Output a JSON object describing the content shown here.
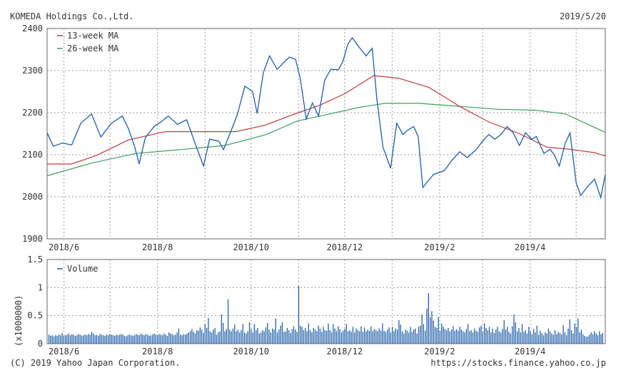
{
  "header": {
    "company": "KOMEDA Holdings Co.,Ltd.",
    "date": "2019/5/20"
  },
  "footer": {
    "copyright": "(C) 2019 Yahoo Japan Corporation.",
    "url": "https://stocks.finance.yahoo.co.jp"
  },
  "colors": {
    "price": "#1f5fa8",
    "ma13": "#c0393b",
    "ma26": "#3aa05a",
    "volume": "#1f5fa8",
    "grid": "#9a9a9a"
  },
  "chart_data": [
    {
      "type": "line",
      "title": "",
      "grid": true,
      "legend_placement": "top-left",
      "x_tick_labels": [
        "2018/6",
        "2018/8",
        "2018/10",
        "2018/12",
        "2019/2",
        "2019/4"
      ],
      "x_range": [
        "2018-05-21",
        "2019-05-20"
      ],
      "y_ticks": [
        "1900",
        "2000",
        "2100",
        "2200",
        "2300",
        "2400"
      ],
      "ylim": [
        1900,
        2400
      ],
      "series": [
        {
          "name": "",
          "role": "price",
          "points": [
            [
              "2018-05-21",
              2152
            ],
            [
              "2018-05-25",
              2120
            ],
            [
              "2018-05-31",
              2128
            ],
            [
              "2018-06-06",
              2123
            ],
            [
              "2018-06-12",
              2175
            ],
            [
              "2018-06-19",
              2197
            ],
            [
              "2018-06-25",
              2142
            ],
            [
              "2018-07-02",
              2175
            ],
            [
              "2018-07-09",
              2192
            ],
            [
              "2018-07-13",
              2162
            ],
            [
              "2018-07-17",
              2120
            ],
            [
              "2018-07-20",
              2078
            ],
            [
              "2018-07-24",
              2140
            ],
            [
              "2018-07-30",
              2168
            ],
            [
              "2018-08-03",
              2177
            ],
            [
              "2018-08-08",
              2192
            ],
            [
              "2018-08-14",
              2172
            ],
            [
              "2018-08-20",
              2183
            ],
            [
              "2018-08-26",
              2122
            ],
            [
              "2018-08-31",
              2073
            ],
            [
              "2018-09-04",
              2137
            ],
            [
              "2018-09-10",
              2132
            ],
            [
              "2018-09-13",
              2112
            ],
            [
              "2018-09-18",
              2157
            ],
            [
              "2018-09-22",
              2195
            ],
            [
              "2018-09-27",
              2263
            ],
            [
              "2018-10-02",
              2250
            ],
            [
              "2018-10-05",
              2198
            ],
            [
              "2018-10-09",
              2295
            ],
            [
              "2018-10-13",
              2335
            ],
            [
              "2018-10-18",
              2303
            ],
            [
              "2018-10-22",
              2318
            ],
            [
              "2018-10-26",
              2332
            ],
            [
              "2018-10-30",
              2327
            ],
            [
              "2018-11-02",
              2283
            ],
            [
              "2018-11-06",
              2185
            ],
            [
              "2018-11-10",
              2223
            ],
            [
              "2018-11-14",
              2192
            ],
            [
              "2018-11-18",
              2277
            ],
            [
              "2018-11-22",
              2303
            ],
            [
              "2018-11-27",
              2302
            ],
            [
              "2018-11-30",
              2323
            ],
            [
              "2018-12-03",
              2362
            ],
            [
              "2018-12-06",
              2378
            ],
            [
              "2018-12-10",
              2358
            ],
            [
              "2018-12-15",
              2335
            ],
            [
              "2018-12-19",
              2353
            ],
            [
              "2018-12-22",
              2233
            ],
            [
              "2018-12-26",
              2118
            ],
            [
              "2018-12-31",
              2068
            ],
            [
              "2019-01-04",
              2175
            ],
            [
              "2019-01-08",
              2148
            ],
            [
              "2019-01-11",
              2158
            ],
            [
              "2019-01-15",
              2167
            ],
            [
              "2019-01-18",
              2143
            ],
            [
              "2019-01-21",
              2022
            ],
            [
              "2019-01-28",
              2053
            ],
            [
              "2019-02-04",
              2062
            ],
            [
              "2019-02-09",
              2087
            ],
            [
              "2019-02-14",
              2107
            ],
            [
              "2019-02-19",
              2093
            ],
            [
              "2019-02-25",
              2113
            ],
            [
              "2019-03-01",
              2132
            ],
            [
              "2019-03-05",
              2148
            ],
            [
              "2019-03-09",
              2137
            ],
            [
              "2019-03-13",
              2148
            ],
            [
              "2019-03-17",
              2167
            ],
            [
              "2019-03-21",
              2152
            ],
            [
              "2019-03-25",
              2122
            ],
            [
              "2019-03-29",
              2152
            ],
            [
              "2019-04-02",
              2137
            ],
            [
              "2019-04-05",
              2143
            ],
            [
              "2019-04-10",
              2103
            ],
            [
              "2019-04-14",
              2113
            ],
            [
              "2019-04-17",
              2098
            ],
            [
              "2019-04-20",
              2073
            ],
            [
              "2019-04-24",
              2128
            ],
            [
              "2019-04-27",
              2152
            ],
            [
              "2019-05-01",
              2033
            ],
            [
              "2019-05-04",
              2003
            ],
            [
              "2019-05-08",
              2022
            ],
            [
              "2019-05-13",
              2042
            ],
            [
              "2019-05-17",
              1998
            ],
            [
              "2019-05-20",
              2053
            ]
          ]
        },
        {
          "name": "13-week MA",
          "role": "ma13",
          "points": [
            [
              "2018-05-21",
              2078
            ],
            [
              "2018-06-06",
              2078
            ],
            [
              "2018-06-22",
              2098
            ],
            [
              "2018-07-13",
              2135
            ],
            [
              "2018-08-06",
              2155
            ],
            [
              "2018-08-31",
              2155
            ],
            [
              "2018-09-21",
              2155
            ],
            [
              "2018-10-10",
              2170
            ],
            [
              "2018-10-28",
              2195
            ],
            [
              "2018-11-15",
              2218
            ],
            [
              "2018-12-01",
              2245
            ],
            [
              "2018-12-20",
              2288
            ],
            [
              "2019-01-05",
              2282
            ],
            [
              "2019-01-25",
              2260
            ],
            [
              "2019-02-14",
              2215
            ],
            [
              "2019-03-05",
              2178
            ],
            [
              "2019-03-25",
              2150
            ],
            [
              "2019-04-12",
              2118
            ],
            [
              "2019-04-27",
              2113
            ],
            [
              "2019-05-13",
              2105
            ],
            [
              "2019-05-20",
              2097
            ]
          ]
        },
        {
          "name": "26-week MA",
          "role": "ma26",
          "points": [
            [
              "2018-05-21",
              2050
            ],
            [
              "2018-06-19",
              2080
            ],
            [
              "2018-07-18",
              2103
            ],
            [
              "2018-08-16",
              2112
            ],
            [
              "2018-09-14",
              2122
            ],
            [
              "2018-10-11",
              2148
            ],
            [
              "2018-10-31",
              2180
            ],
            [
              "2018-11-20",
              2196
            ],
            [
              "2018-12-10",
              2212
            ],
            [
              "2018-12-27",
              2222
            ],
            [
              "2019-01-19",
              2222
            ],
            [
              "2019-02-14",
              2215
            ],
            [
              "2019-03-11",
              2208
            ],
            [
              "2019-04-04",
              2206
            ],
            [
              "2019-04-24",
              2197
            ],
            [
              "2019-05-20",
              2153
            ]
          ]
        }
      ]
    },
    {
      "type": "bar",
      "title": "",
      "ylabel": "(x1000000)",
      "y_ticks": [
        "0",
        "0.5",
        "1",
        "1.5"
      ],
      "ylim": [
        0,
        1.5
      ],
      "x_tick_labels": [
        "2018/6",
        "2018/8",
        "2018/10",
        "2018/12",
        "2019/2",
        "2019/4"
      ],
      "x_range": [
        "2018-05-21",
        "2019-05-20"
      ],
      "grid": true,
      "legend_placement": "top-left",
      "series": [
        {
          "name": "Volume",
          "values": [
            0.16,
            0.14,
            0.15,
            0.13,
            0.15,
            0.14,
            0.16,
            0.15,
            0.19,
            0.14,
            0.15,
            0.16,
            0.18,
            0.15,
            0.17,
            0.16,
            0.14,
            0.15,
            0.17,
            0.16,
            0.14,
            0.15,
            0.16,
            0.15,
            0.17,
            0.16,
            0.21,
            0.18,
            0.15,
            0.16,
            0.14,
            0.17,
            0.16,
            0.15,
            0.14,
            0.16,
            0.15,
            0.17,
            0.16,
            0.15,
            0.14,
            0.16,
            0.15,
            0.16,
            0.17,
            0.16,
            0.14,
            0.13,
            0.15,
            0.16,
            0.15,
            0.14,
            0.15,
            0.17,
            0.16,
            0.15,
            0.18,
            0.16,
            0.15,
            0.17,
            0.16,
            0.14,
            0.15,
            0.16,
            0.18,
            0.16,
            0.15,
            0.17,
            0.16,
            0.15,
            0.18,
            0.16,
            0.14,
            0.2,
            0.18,
            0.17,
            0.15,
            0.16,
            0.2,
            0.27,
            0.16,
            0.15,
            0.17,
            0.16,
            0.18,
            0.2,
            0.22,
            0.26,
            0.21,
            0.18,
            0.24,
            0.23,
            0.29,
            0.25,
            0.19,
            0.35,
            0.28,
            0.46,
            0.22,
            0.2,
            0.25,
            0.28,
            0.16,
            0.2,
            0.22,
            0.52,
            0.37,
            0.22,
            0.26,
            0.79,
            0.25,
            0.22,
            0.27,
            0.34,
            0.22,
            0.25,
            0.2,
            0.24,
            0.35,
            0.2,
            0.18,
            0.22,
            0.38,
            0.26,
            0.2,
            0.35,
            0.24,
            0.28,
            0.18,
            0.2,
            0.24,
            0.22,
            0.29,
            0.37,
            0.25,
            0.2,
            0.27,
            0.25,
            0.45,
            0.2,
            0.25,
            0.32,
            0.38,
            0.21,
            0.22,
            0.28,
            0.24,
            0.19,
            0.26,
            0.31,
            0.25,
            0.21,
            1.03,
            0.32,
            0.3,
            0.24,
            0.28,
            0.22,
            0.36,
            0.24,
            0.2,
            0.28,
            0.25,
            0.22,
            0.32,
            0.27,
            0.21,
            0.3,
            0.24,
            0.23,
            0.36,
            0.24,
            0.2,
            0.35,
            0.27,
            0.22,
            0.31,
            0.26,
            0.2,
            0.23,
            0.26,
            0.35,
            0.22,
            0.24,
            0.21,
            0.3,
            0.2,
            0.27,
            0.24,
            0.22,
            0.31,
            0.21,
            0.29,
            0.22,
            0.25,
            0.23,
            0.31,
            0.22,
            0.26,
            0.24,
            0.22,
            0.27,
            0.23,
            0.36,
            0.23,
            0.21,
            0.25,
            0.29,
            0.2,
            0.3,
            0.22,
            0.27,
            0.25,
            0.42,
            0.34,
            0.22,
            0.18,
            0.25,
            0.23,
            0.2,
            0.3,
            0.21,
            0.25,
            0.27,
            0.18,
            0.3,
            0.32,
            0.52,
            0.35,
            0.23,
            0.62,
            0.9,
            0.47,
            0.58,
            0.41,
            0.3,
            0.28,
            0.47,
            0.23,
            0.36,
            0.3,
            0.26,
            0.24,
            0.28,
            0.22,
            0.25,
            0.31,
            0.23,
            0.26,
            0.23,
            0.3,
            0.25,
            0.22,
            0.2,
            0.26,
            0.35,
            0.22,
            0.24,
            0.2,
            0.27,
            0.23,
            0.21,
            0.29,
            0.32,
            0.21,
            0.36,
            0.28,
            0.24,
            0.3,
            0.2,
            0.27,
            0.19,
            0.25,
            0.3,
            0.22,
            0.2,
            0.26,
            0.42,
            0.25,
            0.3,
            0.21,
            0.18,
            0.31,
            0.52,
            0.38,
            0.22,
            0.28,
            0.2,
            0.35,
            0.21,
            0.24,
            0.18,
            0.3,
            0.22,
            0.17,
            0.26,
            0.2,
            0.32,
            0.16,
            0.23,
            0.19,
            0.15,
            0.2,
            0.18,
            0.27,
            0.22,
            0.18,
            0.16,
            0.24,
            0.17,
            0.21,
            0.19,
            0.16,
            0.33,
            0.2,
            0.15,
            0.27,
            0.43,
            0.24,
            0.18,
            0.36,
            0.3,
            0.45,
            0.2,
            0.25,
            0.17,
            0.14,
            0.12,
            0.13,
            0.16,
            0.2,
            0.17,
            0.22,
            0.18,
            0.15,
            0.22,
            0.17,
            0.19
          ]
        }
      ]
    }
  ]
}
